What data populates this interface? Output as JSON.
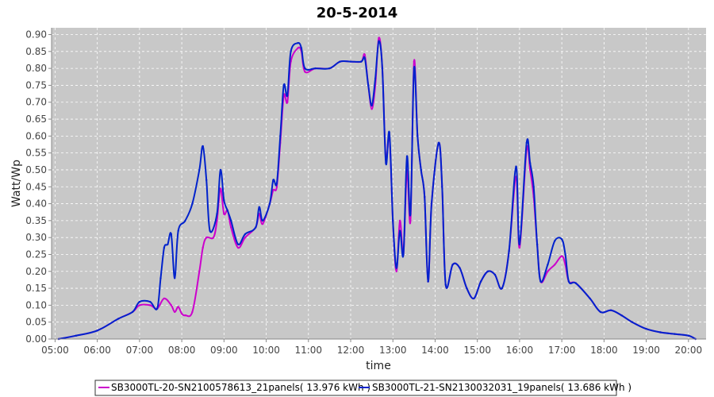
{
  "chart_data": {
    "type": "line",
    "title": "20-5-2014",
    "xlabel": "time",
    "ylabel": "Watt/Wp",
    "xlim": [
      "04:55",
      "20:25"
    ],
    "ylim": [
      0,
      0.92
    ],
    "x_ticks": [
      "05:00",
      "06:00",
      "07:00",
      "08:00",
      "09:00",
      "10:00",
      "11:00",
      "12:00",
      "13:00",
      "14:00",
      "15:00",
      "16:00",
      "17:00",
      "18:00",
      "19:00",
      "20:00"
    ],
    "y_ticks": [
      "0.00",
      "0.05",
      "0.10",
      "0.15",
      "0.20",
      "0.25",
      "0.30",
      "0.35",
      "0.40",
      "0.45",
      "0.50",
      "0.55",
      "0.60",
      "0.65",
      "0.70",
      "0.75",
      "0.80",
      "0.85",
      "0.90"
    ],
    "grid": true,
    "plot_background": "#c8c8c8",
    "legend_placement": "bottom",
    "series": [
      {
        "name": "SB3000TL-20-SN2100578613_21panels( 13.976 kWh )",
        "color": "#cc00cc",
        "points": [
          [
            "05:05",
            0.0
          ],
          [
            "05:30",
            0.01
          ],
          [
            "06:00",
            0.025
          ],
          [
            "06:30",
            0.06
          ],
          [
            "06:50",
            0.08
          ],
          [
            "07:00",
            0.1
          ],
          [
            "07:15",
            0.1
          ],
          [
            "07:25",
            0.09
          ],
          [
            "07:35",
            0.12
          ],
          [
            "07:45",
            0.1
          ],
          [
            "07:50",
            0.08
          ],
          [
            "07:55",
            0.095
          ],
          [
            "08:00",
            0.075
          ],
          [
            "08:05",
            0.07
          ],
          [
            "08:15",
            0.08
          ],
          [
            "08:25",
            0.2
          ],
          [
            "08:30",
            0.27
          ],
          [
            "08:35",
            0.3
          ],
          [
            "08:45",
            0.3
          ],
          [
            "08:50",
            0.35
          ],
          [
            "08:55",
            0.445
          ],
          [
            "09:00",
            0.37
          ],
          [
            "09:05",
            0.38
          ],
          [
            "09:10",
            0.33
          ],
          [
            "09:20",
            0.27
          ],
          [
            "09:30",
            0.3
          ],
          [
            "09:45",
            0.33
          ],
          [
            "09:50",
            0.37
          ],
          [
            "09:55",
            0.34
          ],
          [
            "10:05",
            0.4
          ],
          [
            "10:10",
            0.44
          ],
          [
            "10:15",
            0.45
          ],
          [
            "10:20",
            0.58
          ],
          [
            "10:25",
            0.72
          ],
          [
            "10:30",
            0.7
          ],
          [
            "10:35",
            0.82
          ],
          [
            "10:45",
            0.86
          ],
          [
            "10:50",
            0.85
          ],
          [
            "10:55",
            0.79
          ],
          [
            "11:10",
            0.8
          ],
          [
            "11:30",
            0.8
          ],
          [
            "11:45",
            0.82
          ],
          [
            "12:00",
            0.82
          ],
          [
            "12:15",
            0.82
          ],
          [
            "12:20",
            0.84
          ],
          [
            "12:25",
            0.75
          ],
          [
            "12:30",
            0.68
          ],
          [
            "12:35",
            0.75
          ],
          [
            "12:40",
            0.89
          ],
          [
            "12:45",
            0.8
          ],
          [
            "12:50",
            0.53
          ],
          [
            "12:55",
            0.6
          ],
          [
            "13:00",
            0.35
          ],
          [
            "13:05",
            0.2
          ],
          [
            "13:10",
            0.35
          ],
          [
            "13:15",
            0.25
          ],
          [
            "13:20",
            0.5
          ],
          [
            "13:25",
            0.35
          ],
          [
            "13:30",
            0.82
          ],
          [
            "13:35",
            0.6
          ],
          [
            "13:40",
            0.5
          ],
          [
            "13:45",
            0.42
          ],
          [
            "13:50",
            0.17
          ],
          [
            "13:55",
            0.4
          ],
          [
            "14:05",
            0.58
          ],
          [
            "14:10",
            0.45
          ],
          [
            "14:15",
            0.16
          ],
          [
            "14:25",
            0.22
          ],
          [
            "14:35",
            0.21
          ],
          [
            "14:45",
            0.15
          ],
          [
            "14:55",
            0.12
          ],
          [
            "15:05",
            0.17
          ],
          [
            "15:15",
            0.2
          ],
          [
            "15:25",
            0.19
          ],
          [
            "15:35",
            0.15
          ],
          [
            "15:45",
            0.26
          ],
          [
            "15:55",
            0.48
          ],
          [
            "16:00",
            0.27
          ],
          [
            "16:10",
            0.56
          ],
          [
            "16:15",
            0.5
          ],
          [
            "16:20",
            0.42
          ],
          [
            "16:25",
            0.28
          ],
          [
            "16:30",
            0.17
          ],
          [
            "16:40",
            0.2
          ],
          [
            "16:50",
            0.22
          ],
          [
            "17:00",
            0.245
          ],
          [
            "17:05",
            0.22
          ],
          [
            "17:10",
            0.17
          ],
          [
            "17:20",
            0.165
          ],
          [
            "17:40",
            0.12
          ],
          [
            "17:55",
            0.08
          ],
          [
            "18:10",
            0.085
          ],
          [
            "18:25",
            0.07
          ],
          [
            "18:40",
            0.05
          ],
          [
            "19:00",
            0.03
          ],
          [
            "19:20",
            0.02
          ],
          [
            "19:40",
            0.015
          ],
          [
            "20:00",
            0.01
          ],
          [
            "20:10",
            0.0
          ]
        ]
      },
      {
        "name": "SB3000TL-21-SN2130032031_19panels( 13.686 kWh )",
        "color": "#0022cc",
        "points": [
          [
            "05:05",
            0.0
          ],
          [
            "05:30",
            0.01
          ],
          [
            "06:00",
            0.025
          ],
          [
            "06:30",
            0.06
          ],
          [
            "06:50",
            0.08
          ],
          [
            "07:00",
            0.11
          ],
          [
            "07:15",
            0.11
          ],
          [
            "07:25",
            0.09
          ],
          [
            "07:30",
            0.18
          ],
          [
            "07:35",
            0.27
          ],
          [
            "07:40",
            0.28
          ],
          [
            "07:45",
            0.31
          ],
          [
            "07:50",
            0.18
          ],
          [
            "07:55",
            0.32
          ],
          [
            "08:05",
            0.35
          ],
          [
            "08:15",
            0.4
          ],
          [
            "08:25",
            0.5
          ],
          [
            "08:30",
            0.57
          ],
          [
            "08:35",
            0.47
          ],
          [
            "08:40",
            0.32
          ],
          [
            "08:50",
            0.37
          ],
          [
            "08:55",
            0.5
          ],
          [
            "09:00",
            0.41
          ],
          [
            "09:05",
            0.38
          ],
          [
            "09:10",
            0.35
          ],
          [
            "09:20",
            0.28
          ],
          [
            "09:30",
            0.31
          ],
          [
            "09:45",
            0.33
          ],
          [
            "09:50",
            0.39
          ],
          [
            "09:55",
            0.35
          ],
          [
            "10:05",
            0.4
          ],
          [
            "10:10",
            0.47
          ],
          [
            "10:15",
            0.46
          ],
          [
            "10:20",
            0.6
          ],
          [
            "10:25",
            0.75
          ],
          [
            "10:30",
            0.72
          ],
          [
            "10:35",
            0.85
          ],
          [
            "10:45",
            0.875
          ],
          [
            "10:50",
            0.86
          ],
          [
            "10:55",
            0.8
          ],
          [
            "11:10",
            0.8
          ],
          [
            "11:30",
            0.8
          ],
          [
            "11:45",
            0.82
          ],
          [
            "12:00",
            0.82
          ],
          [
            "12:15",
            0.82
          ],
          [
            "12:20",
            0.83
          ],
          [
            "12:25",
            0.75
          ],
          [
            "12:30",
            0.69
          ],
          [
            "12:35",
            0.77
          ],
          [
            "12:40",
            0.88
          ],
          [
            "12:45",
            0.8
          ],
          [
            "12:50",
            0.52
          ],
          [
            "12:55",
            0.61
          ],
          [
            "13:00",
            0.35
          ],
          [
            "13:05",
            0.21
          ],
          [
            "13:10",
            0.32
          ],
          [
            "13:15",
            0.25
          ],
          [
            "13:20",
            0.54
          ],
          [
            "13:25",
            0.37
          ],
          [
            "13:30",
            0.8
          ],
          [
            "13:35",
            0.6
          ],
          [
            "13:40",
            0.5
          ],
          [
            "13:45",
            0.42
          ],
          [
            "13:50",
            0.17
          ],
          [
            "13:55",
            0.4
          ],
          [
            "14:05",
            0.58
          ],
          [
            "14:10",
            0.45
          ],
          [
            "14:15",
            0.16
          ],
          [
            "14:25",
            0.22
          ],
          [
            "14:35",
            0.21
          ],
          [
            "14:45",
            0.15
          ],
          [
            "14:55",
            0.12
          ],
          [
            "15:05",
            0.17
          ],
          [
            "15:15",
            0.2
          ],
          [
            "15:25",
            0.19
          ],
          [
            "15:35",
            0.15
          ],
          [
            "15:45",
            0.26
          ],
          [
            "15:55",
            0.51
          ],
          [
            "16:00",
            0.28
          ],
          [
            "16:10",
            0.58
          ],
          [
            "16:15",
            0.52
          ],
          [
            "16:20",
            0.45
          ],
          [
            "16:25",
            0.28
          ],
          [
            "16:30",
            0.17
          ],
          [
            "16:40",
            0.22
          ],
          [
            "16:50",
            0.29
          ],
          [
            "17:00",
            0.295
          ],
          [
            "17:05",
            0.25
          ],
          [
            "17:10",
            0.17
          ],
          [
            "17:20",
            0.165
          ],
          [
            "17:40",
            0.12
          ],
          [
            "17:55",
            0.08
          ],
          [
            "18:10",
            0.085
          ],
          [
            "18:25",
            0.07
          ],
          [
            "18:40",
            0.05
          ],
          [
            "19:00",
            0.03
          ],
          [
            "19:20",
            0.02
          ],
          [
            "19:40",
            0.015
          ],
          [
            "20:00",
            0.01
          ],
          [
            "20:10",
            0.0
          ]
        ]
      }
    ]
  }
}
